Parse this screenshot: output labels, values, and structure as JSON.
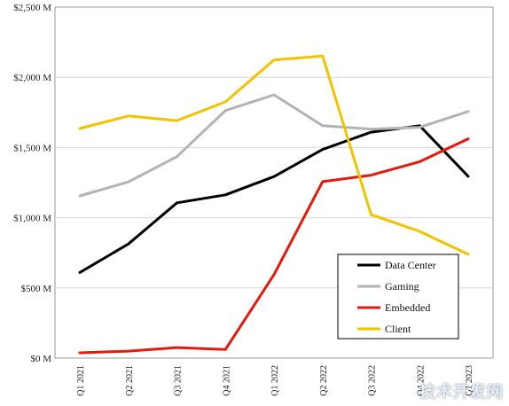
{
  "chart_data": {
    "type": "line",
    "categories": [
      "Q1 2021",
      "Q2 2021",
      "Q3 2021",
      "Q4 2021",
      "Q1 2022",
      "Q2 2022",
      "Q3 2022",
      "Q4 2022",
      "Q1 2023"
    ],
    "y_ticks": [
      "$0 M",
      "$500 M",
      "$1,000 M",
      "$1,500 M",
      "$2,000 M",
      "$2,500 M"
    ],
    "ylim": [
      0,
      2500
    ],
    "ystep": 500,
    "grid": true,
    "legend_position": "bottom-right",
    "series": [
      {
        "name": "Data Center",
        "color": "#000000",
        "values": [
          610,
          813,
          1106,
          1163,
          1293,
          1486,
          1609,
          1655,
          1295
        ]
      },
      {
        "name": "Gaming",
        "color": "#b3b3b3",
        "values": [
          1155,
          1255,
          1435,
          1763,
          1875,
          1655,
          1631,
          1644,
          1757
        ]
      },
      {
        "name": "Embedded",
        "color": "#e31a0c",
        "values": [
          38,
          50,
          75,
          62,
          595,
          1257,
          1303,
          1399,
          1562
        ]
      },
      {
        "name": "Client",
        "color": "#f2c400",
        "values": [
          1635,
          1725,
          1691,
          1825,
          2124,
          2152,
          1022,
          903,
          739
        ]
      }
    ]
  },
  "watermark": {
    "text": "技术开发网"
  }
}
